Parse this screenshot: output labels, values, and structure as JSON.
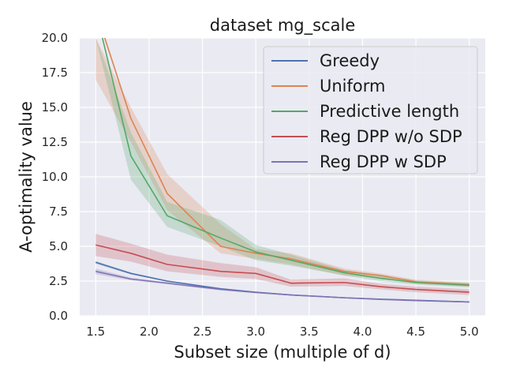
{
  "chart_data": {
    "type": "line",
    "title": "dataset mg_scale",
    "xlabel": "Subset size (multiple of d)",
    "ylabel": "A-optimality value",
    "xlim": [
      1.35,
      5.15
    ],
    "ylim": [
      0,
      20
    ],
    "xticks": [
      1.5,
      2.0,
      2.5,
      3.0,
      3.5,
      4.0,
      4.5,
      5.0
    ],
    "xtick_labels": [
      "1.5",
      "2.0",
      "2.5",
      "3.0",
      "3.5",
      "4.0",
      "4.5",
      "5.0"
    ],
    "yticks": [
      0,
      2.5,
      5,
      7.5,
      10,
      12.5,
      15,
      17.5,
      20
    ],
    "ytick_labels": [
      "0.0",
      "2.5",
      "5.0",
      "7.5",
      "10.0",
      "12.5",
      "15.0",
      "17.5",
      "20.0"
    ],
    "grid": true,
    "legend_position": "top-right",
    "x": [
      1.5,
      1.83,
      2.17,
      2.67,
      3.0,
      3.33,
      3.83,
      4.17,
      4.5,
      5.0
    ],
    "series": [
      {
        "name": "Greedy",
        "color": "#4c72b0",
        "values": [
          3.85,
          3.05,
          2.5,
          1.95,
          1.7,
          1.5,
          1.3,
          1.2,
          1.12,
          1.0
        ],
        "lower": [
          3.75,
          2.98,
          2.45,
          1.92,
          1.67,
          1.48,
          1.28,
          1.18,
          1.1,
          0.98
        ],
        "upper": [
          3.95,
          3.12,
          2.55,
          1.98,
          1.73,
          1.52,
          1.32,
          1.22,
          1.14,
          1.02
        ]
      },
      {
        "name": "Uniform",
        "color": "#dd8452",
        "values": [
          20.0,
          14.2,
          8.8,
          5.0,
          4.5,
          4.1,
          3.2,
          2.9,
          2.45,
          2.25
        ],
        "lower": [
          17.0,
          12.5,
          7.6,
          4.5,
          4.1,
          3.7,
          2.9,
          2.7,
          2.3,
          2.1
        ],
        "upper": [
          20.0,
          15.0,
          10.2,
          6.6,
          4.8,
          4.5,
          3.4,
          3.05,
          2.6,
          2.4
        ]
      },
      {
        "name": "Predictive length",
        "color": "#55a868",
        "values": [
          20.0,
          11.5,
          7.2,
          5.6,
          4.6,
          4.0,
          3.1,
          2.7,
          2.4,
          2.2
        ],
        "lower": [
          20.0,
          9.8,
          6.4,
          5.0,
          4.0,
          3.6,
          2.9,
          2.5,
          2.25,
          2.05
        ],
        "upper": [
          20.0,
          13.2,
          8.2,
          6.9,
          5.1,
          4.4,
          3.3,
          2.9,
          2.55,
          2.35
        ]
      },
      {
        "name": "Reg DPP w/o SDP",
        "color": "#c44e52",
        "values": [
          5.1,
          4.5,
          3.7,
          3.2,
          3.05,
          2.35,
          2.4,
          2.1,
          1.9,
          1.7
        ],
        "lower": [
          4.3,
          3.9,
          3.2,
          2.8,
          2.65,
          2.1,
          2.15,
          1.9,
          1.7,
          1.5
        ],
        "upper": [
          5.9,
          5.2,
          4.4,
          3.8,
          3.5,
          2.6,
          2.7,
          2.3,
          2.1,
          1.9
        ]
      },
      {
        "name": "Reg DPP w SDP",
        "color": "#8172b3",
        "values": [
          3.2,
          2.65,
          2.35,
          1.9,
          1.68,
          1.5,
          1.3,
          1.18,
          1.1,
          1.0
        ],
        "lower": [
          3.0,
          2.55,
          2.28,
          1.85,
          1.64,
          1.47,
          1.27,
          1.16,
          1.08,
          0.98
        ],
        "upper": [
          3.4,
          2.75,
          2.42,
          1.95,
          1.72,
          1.53,
          1.33,
          1.2,
          1.12,
          1.02
        ]
      }
    ]
  }
}
